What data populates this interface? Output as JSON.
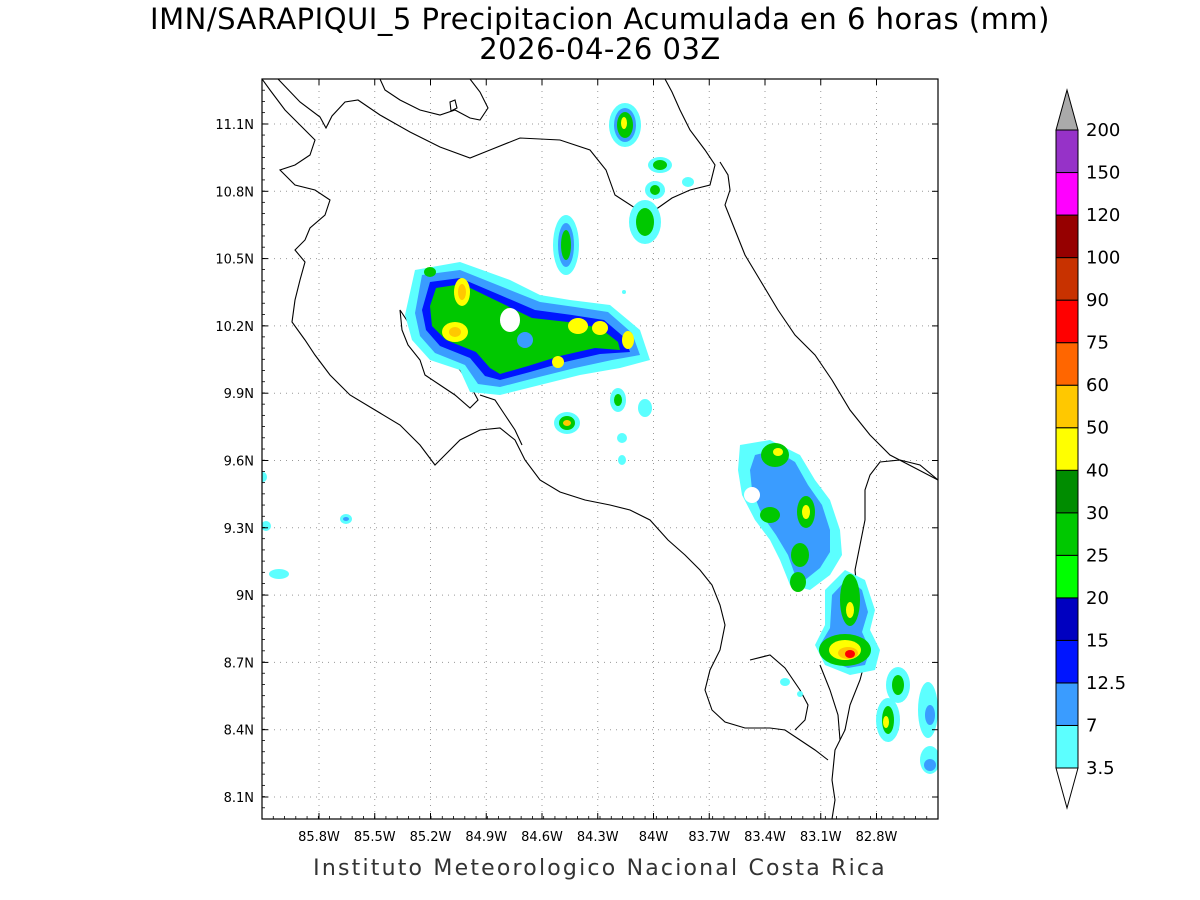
{
  "title_line1": "IMN/SARAPIQUI_5 Precipitacion Acumulada en 6 horas (mm)",
  "title_line2": "2026-04-26 03Z",
  "credit": "Instituto Meteorologico Nacional Costa Rica",
  "map": {
    "lon_range": [
      -86.0,
      -83.0
    ],
    "lat_range": [
      8.0,
      11.3
    ],
    "lon_ticks": [
      "85.8W",
      "85.5W",
      "85.2W",
      "84.9W",
      "84.6W",
      "84.3W",
      "84W",
      "83.7W",
      "83.4W",
      "83.1W",
      "82.8W"
    ],
    "lat_ticks": [
      "11.1N",
      "10.8N",
      "10.5N",
      "10.2N",
      "9.9N",
      "9.6N",
      "9.3N",
      "9N",
      "8.7N",
      "8.4N",
      "8.1N"
    ],
    "grid": true
  },
  "colorbar": {
    "levels": [
      "3.5",
      "7",
      "12.5",
      "15",
      "20",
      "25",
      "30",
      "40",
      "50",
      "60",
      "75",
      "90",
      "100",
      "120",
      "150",
      "200"
    ],
    "colors": [
      "#5cffff",
      "#3a9cff",
      "#0015ff",
      "#0000c0",
      "#00ff00",
      "#00c800",
      "#008c00",
      "#ffff00",
      "#ffc800",
      "#ff6600",
      "#ff0000",
      "#c83200",
      "#960000",
      "#ff00ff",
      "#9632c8",
      "#f5f5f5",
      "#aaaaaa"
    ]
  }
}
